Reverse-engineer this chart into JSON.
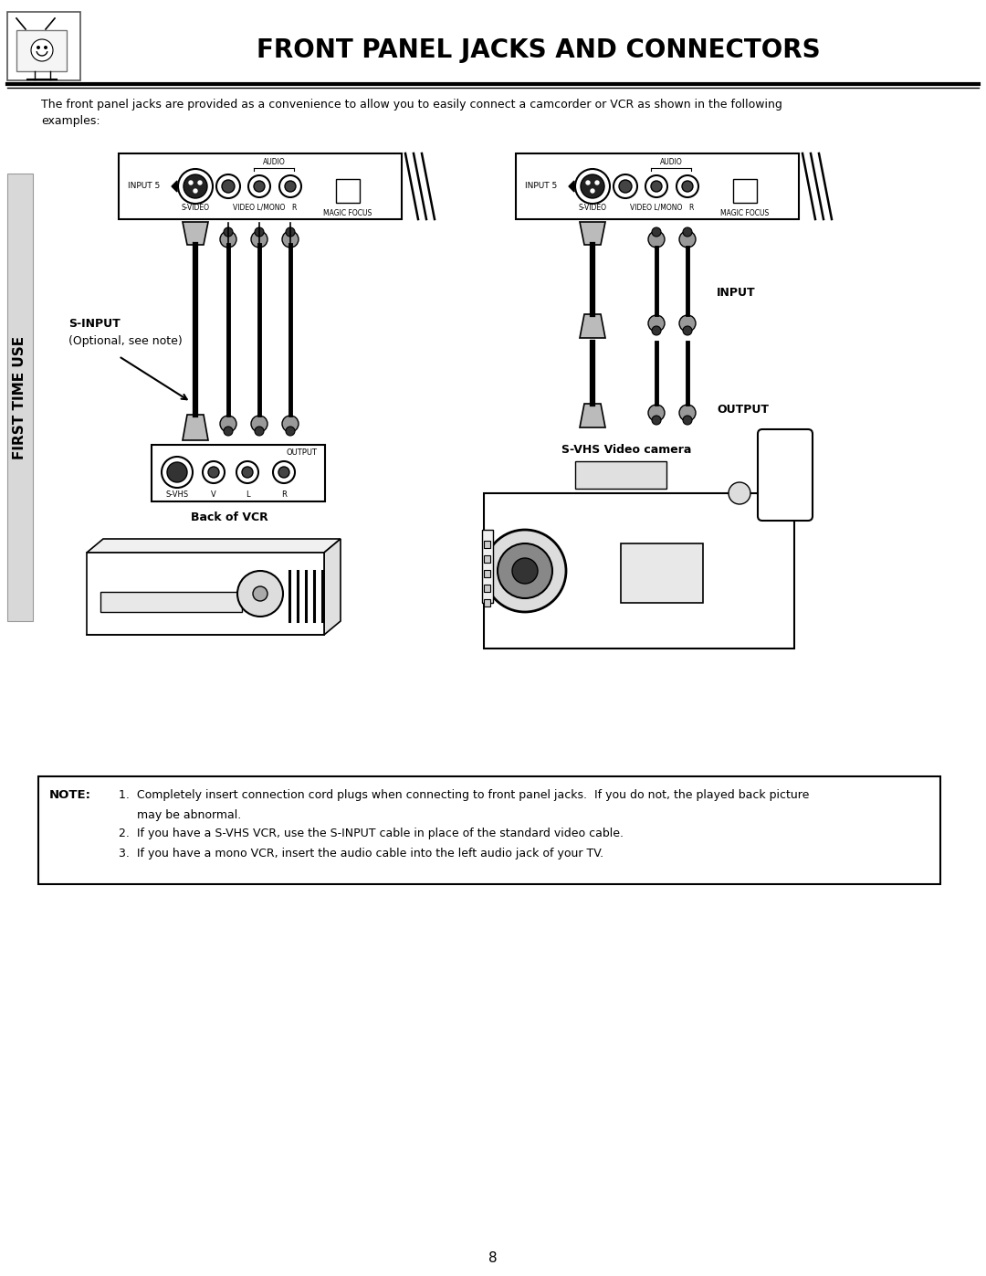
{
  "title": "FRONT PANEL JACKS AND CONNECTORS",
  "page_number": "8",
  "bg": "#ffffff",
  "sidebar_text": "FIRST TIME USE",
  "intro_text": "The front panel jacks are provided as a convenience to allow you to easily connect a camcorder or VCR as shown in the following\nexamples:",
  "note_label": "NOTE:",
  "note_line1": "1.  Completely insert connection cord plugs when connecting to front panel jacks.  If you do not, the played back picture",
  "note_line1b": "     may be abnormal.",
  "note_line2": "2.  If you have a S-VHS VCR, use the S-INPUT cable in place of the standard video cable.",
  "note_line3": "3.  If you have a mono VCR, insert the audio cable into the left audio jack of your TV.",
  "left_label": "Back of VCR",
  "sinput_label1": "S-INPUT",
  "sinput_label2": "(Optional, see note)",
  "right_label": "S-VHS Video camera",
  "input_label": "INPUT",
  "output_label": "OUTPUT"
}
